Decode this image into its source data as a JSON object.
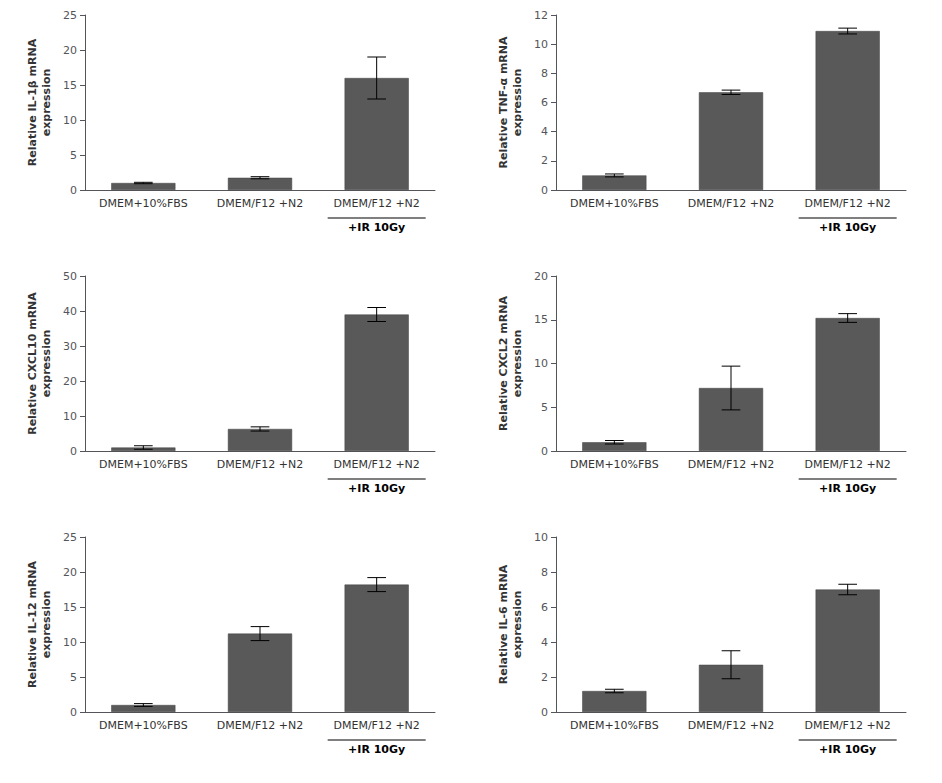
{
  "chart_data": [
    {
      "type": "bar",
      "ylabel": "Relative IL-1β mRNA\nexpression",
      "categories": [
        "DMEM+10%FBS",
        "DMEM/F12 +N2",
        "DMEM/F12 +N2"
      ],
      "values": [
        1.0,
        1.75,
        16.0
      ],
      "errors": [
        0.1,
        0.15,
        3.0
      ],
      "color": "#595959",
      "ylim": [
        0,
        25
      ],
      "yticks": [
        0,
        5,
        10,
        15,
        20,
        25
      ],
      "grid": false,
      "annotations": [
        "+IR 10Gy"
      ]
    },
    {
      "type": "bar",
      "ylabel": "Relative TNF-α mRNA\nexpression",
      "categories": [
        "DMEM+10%FBS",
        "DMEM/F12 +N2",
        "DMEM/F12 +N2"
      ],
      "values": [
        1.0,
        6.7,
        10.9
      ],
      "errors": [
        0.1,
        0.15,
        0.2
      ],
      "color": "#595959",
      "ylim": [
        0,
        12
      ],
      "yticks": [
        0,
        2,
        4,
        6,
        8,
        10,
        12
      ],
      "grid": false,
      "annotations": [
        "+IR 10Gy"
      ]
    },
    {
      "type": "bar",
      "ylabel": "Relative CXCL10 mRNA\nexpression",
      "categories": [
        "DMEM+10%FBS",
        "DMEM/F12 +N2",
        "DMEM/F12 +N2"
      ],
      "values": [
        1.0,
        6.3,
        39.0
      ],
      "errors": [
        0.5,
        0.6,
        2.0
      ],
      "color": "#595959",
      "ylim": [
        0,
        50
      ],
      "yticks": [
        0,
        10,
        20,
        30,
        40,
        50
      ],
      "grid": false,
      "annotations": [
        "+IR 10Gy"
      ]
    },
    {
      "type": "bar",
      "ylabel": "Relative CXCL2 mRNA\nexpression",
      "categories": [
        "DMEM+10%FBS",
        "DMEM/F12 +N2",
        "DMEM/F12 +N2"
      ],
      "values": [
        1.0,
        7.2,
        15.2
      ],
      "errors": [
        0.2,
        2.5,
        0.5
      ],
      "color": "#595959",
      "ylim": [
        0,
        20
      ],
      "yticks": [
        0,
        5,
        10,
        15,
        20
      ],
      "grid": false,
      "annotations": [
        "+IR 10Gy"
      ]
    },
    {
      "type": "bar",
      "ylabel": "Relative IL-12 mRNA\nexpression",
      "categories": [
        "DMEM+10%FBS",
        "DMEM/F12 +N2",
        "DMEM/F12 +N2"
      ],
      "values": [
        1.0,
        11.2,
        18.2
      ],
      "errors": [
        0.2,
        1.0,
        1.0
      ],
      "color": "#595959",
      "ylim": [
        0,
        25
      ],
      "yticks": [
        0,
        5,
        10,
        15,
        20,
        25
      ],
      "grid": false,
      "annotations": [
        "+IR 10Gy"
      ]
    },
    {
      "type": "bar",
      "ylabel": "Relative IL-6 mRNA\nexpression",
      "categories": [
        "DMEM+10%FBS",
        "DMEM/F12 +N2",
        "DMEM/F12 +N2"
      ],
      "values": [
        1.2,
        2.7,
        7.0
      ],
      "errors": [
        0.1,
        0.8,
        0.3
      ],
      "color": "#595959",
      "ylim": [
        0,
        10
      ],
      "yticks": [
        0,
        2,
        4,
        6,
        8,
        10
      ],
      "grid": false,
      "annotations": [
        "+IR 10Gy"
      ]
    }
  ]
}
